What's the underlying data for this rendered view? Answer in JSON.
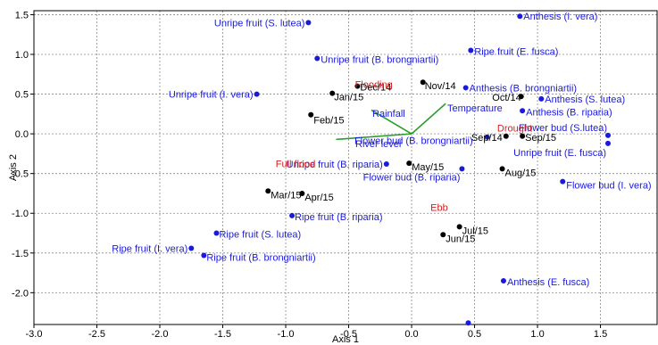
{
  "chart_data": {
    "type": "scatter",
    "xlabel": "Axis 1",
    "ylabel": "Axis 2",
    "xlim": [
      -3.0,
      1.95
    ],
    "ylim": [
      -2.4,
      1.55
    ],
    "xticks": [
      -3.0,
      -2.5,
      -2.0,
      -1.5,
      -1.0,
      -0.5,
      0.0,
      0.5,
      1.0,
      1.5
    ],
    "yticks": [
      1.5,
      1.0,
      0.5,
      0.0,
      -0.5,
      -1.0,
      -1.5,
      -2.0
    ],
    "xtick_labels": [
      "-3.0",
      "-2.5",
      "-2.0",
      "-1.5",
      "-1.0",
      "-0.5",
      "0.0",
      "0.5",
      "1.0",
      "1.5"
    ],
    "ytick_labels": [
      "1.5",
      "1.0",
      "0.5",
      "0.0",
      "-0.5",
      "-1.0",
      "-1.5",
      "-2.0"
    ],
    "grid": true,
    "colors": {
      "species": "#1a1adc",
      "months": "#000000",
      "variables": "#d42020",
      "vectors": "#2a9d2a"
    },
    "species_points": [
      {
        "label": "Unripe fruit (S. lutea)",
        "x": -0.82,
        "y": 1.4
      },
      {
        "label": "Anthesis (I. vera)",
        "x": 0.86,
        "y": 1.48
      },
      {
        "label": "Unripe fruit (B. brongniartii)",
        "x": -0.75,
        "y": 0.95
      },
      {
        "label": "Ripe fruit (E. fusca)",
        "x": 0.47,
        "y": 1.05
      },
      {
        "label": "Unripe fruit (I. vera)",
        "x": -1.23,
        "y": 0.5
      },
      {
        "label": "Anthesis (B. brongniartii)",
        "x": 0.43,
        "y": 0.58
      },
      {
        "label": "Anthesis (S. lutea)",
        "x": 1.03,
        "y": 0.44
      },
      {
        "label": "Anthesis (B. riparia)",
        "x": 0.88,
        "y": 0.29
      },
      {
        "label": "Flower bud (S.lutea)",
        "x": 1.56,
        "y": -0.02
      },
      {
        "label": "Unripe fruit (E. fusca)",
        "x": 1.56,
        "y": -0.12
      },
      {
        "label": "Flower bud (B. brongniartii)",
        "x": 0.6,
        "y": -0.04
      },
      {
        "label": "Unripe fruit (B. riparia)",
        "x": -0.2,
        "y": -0.38
      },
      {
        "label": "Flower bud (B. riparia)",
        "x": 0.4,
        "y": -0.44
      },
      {
        "label": "Flower bud (I. vera)",
        "x": 1.2,
        "y": -0.6
      },
      {
        "label": "Ripe fruit (B. riparia)",
        "x": -0.95,
        "y": -1.03
      },
      {
        "label": "Ripe fruit (S. lutea)",
        "x": -1.55,
        "y": -1.25
      },
      {
        "label": "Ripe fruit (I. vera)",
        "x": -1.75,
        "y": -1.44
      },
      {
        "label": "Ripe fruit (B. brongniartii)",
        "x": -1.65,
        "y": -1.53
      },
      {
        "label": "Anthesis (E. fusca)",
        "x": 0.73,
        "y": -1.85
      },
      {
        "label": "",
        "x": 0.45,
        "y": -2.38
      }
    ],
    "month_points": [
      {
        "label": "Dec/14",
        "x": -0.43,
        "y": 0.6
      },
      {
        "label": "Nov/14",
        "x": 0.09,
        "y": 0.65
      },
      {
        "label": "Jan/15",
        "x": -0.63,
        "y": 0.51
      },
      {
        "label": "Oct/14",
        "x": 0.87,
        "y": 0.47
      },
      {
        "label": "Feb/15",
        "x": -0.8,
        "y": 0.24
      },
      {
        "label": "Sep/14",
        "x": 0.75,
        "y": -0.03
      },
      {
        "label": "Sep/15",
        "x": 0.88,
        "y": -0.03
      },
      {
        "label": "May/15",
        "x": -0.02,
        "y": -0.37
      },
      {
        "label": "Aug/15",
        "x": 0.72,
        "y": -0.44
      },
      {
        "label": "Mar/15",
        "x": -1.14,
        "y": -0.72
      },
      {
        "label": "Apr/15",
        "x": -0.87,
        "y": -0.75
      },
      {
        "label": "Jul/15",
        "x": 0.38,
        "y": -1.17
      },
      {
        "label": "Jun/15",
        "x": 0.25,
        "y": -1.27
      }
    ],
    "variable_labels": [
      {
        "label": "Flooding",
        "x": -0.45,
        "y": 0.58
      },
      {
        "label": "Full flood",
        "x": -1.08,
        "y": -0.42
      },
      {
        "label": "Ebb",
        "x": 0.15,
        "y": -0.97
      },
      {
        "label": "Drought",
        "x": 0.68,
        "y": 0.03
      }
    ],
    "vectors": [
      {
        "label": "Temperature",
        "x": 0.27,
        "y": 0.38
      },
      {
        "label": "Rainfall",
        "x": -0.32,
        "y": 0.3
      },
      {
        "label": "River level",
        "x": -0.6,
        "y": -0.07
      }
    ]
  }
}
